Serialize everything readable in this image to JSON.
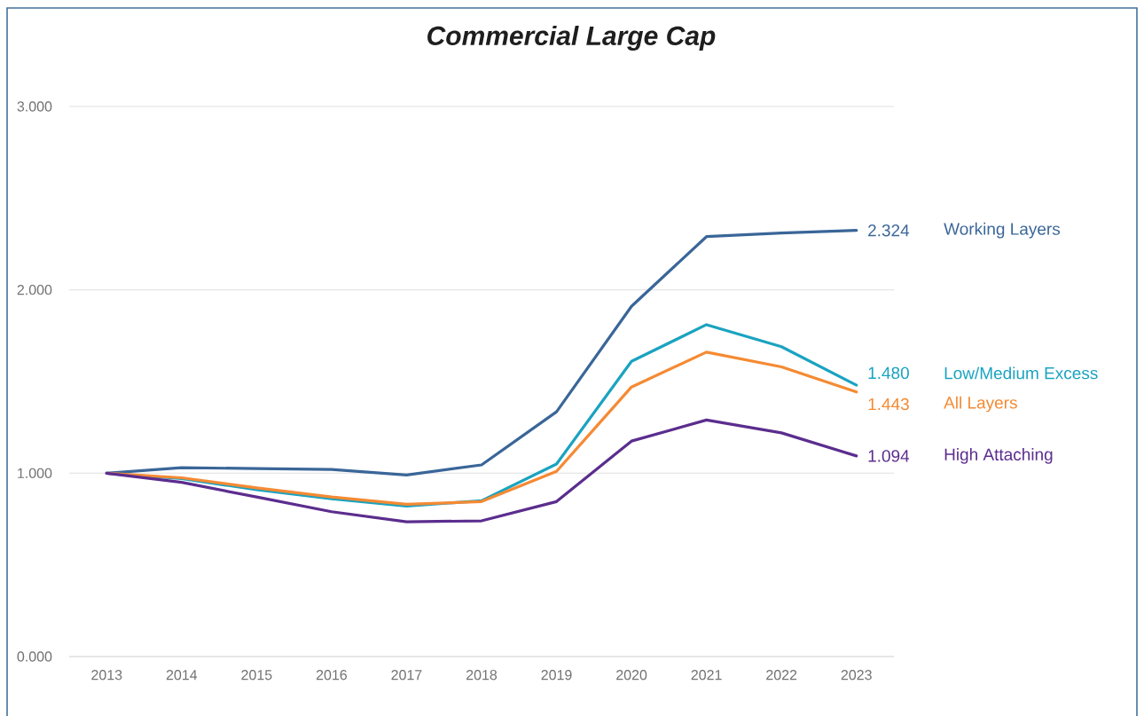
{
  "chart_data": {
    "type": "line",
    "title": "Commercial Large Cap",
    "categories": [
      "2013",
      "2014",
      "2015",
      "2016",
      "2017",
      "2018",
      "2019",
      "2020",
      "2021",
      "2022",
      "2023"
    ],
    "series": [
      {
        "name": "Working Layers",
        "color": "#3a6698",
        "values": [
          1.0,
          1.03,
          1.025,
          1.02,
          0.99,
          1.045,
          1.335,
          1.91,
          2.29,
          2.31,
          2.324
        ],
        "value_labels": [
          null,
          null,
          null,
          null,
          null,
          null,
          null,
          null,
          null,
          null,
          "2.324"
        ]
      },
      {
        "name": "Low/Medium Excess",
        "color": "#1aa3c0",
        "values": [
          1.0,
          0.97,
          0.91,
          0.86,
          0.82,
          0.85,
          1.05,
          1.61,
          1.81,
          1.69,
          1.48
        ],
        "value_labels": [
          null,
          null,
          null,
          null,
          null,
          null,
          null,
          null,
          null,
          null,
          "1.480"
        ]
      },
      {
        "name": "All Layers",
        "color": "#f58a33",
        "values": [
          1.0,
          0.975,
          0.92,
          0.87,
          0.83,
          0.845,
          1.01,
          1.47,
          1.66,
          1.58,
          1.443
        ],
        "value_labels": [
          null,
          null,
          null,
          null,
          null,
          null,
          null,
          null,
          null,
          null,
          "1.443"
        ]
      },
      {
        "name": "High Attaching",
        "color": "#5b2d8e",
        "values": [
          1.0,
          0.95,
          0.87,
          0.79,
          0.735,
          0.74,
          0.845,
          1.175,
          1.29,
          1.22,
          1.094
        ],
        "value_labels": [
          null,
          null,
          null,
          null,
          null,
          null,
          null,
          null,
          null,
          null,
          "1.094"
        ]
      }
    ],
    "ylim": [
      0,
      3
    ],
    "yticks": [
      {
        "value": 0,
        "label": "0.000"
      },
      {
        "value": 1,
        "label": "1.000"
      },
      {
        "value": 2,
        "label": "2.000"
      },
      {
        "value": 3,
        "label": "3.000"
      }
    ],
    "grid": "y",
    "legend": false,
    "marker": "none",
    "line_style": "solid"
  }
}
